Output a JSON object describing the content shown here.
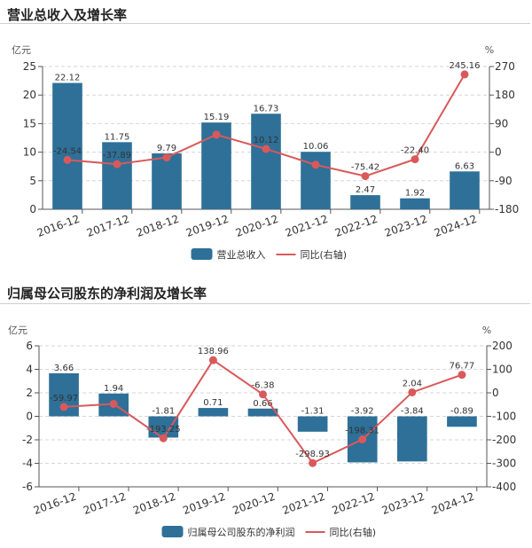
{
  "colors": {
    "bar": "#2e7098",
    "line": "#d9595b",
    "axis": "#555555",
    "grid": "#d6d6d6"
  },
  "chart_data": [
    {
      "type": "bar",
      "title": "营业总收入及增长率",
      "categories": [
        "2016-12",
        "2017-12",
        "2018-12",
        "2019-12",
        "2020-12",
        "2021-12",
        "2022-12",
        "2023-12",
        "2024-12"
      ],
      "left_axis": {
        "unit": "亿元",
        "ylim": [
          0,
          25
        ],
        "ticks": [
          "0",
          "5",
          "10",
          "15",
          "20",
          "25"
        ],
        "tick_values": [
          0,
          5,
          10,
          15,
          20,
          25
        ]
      },
      "right_axis": {
        "unit": "%",
        "ylim": [
          -180,
          270
        ],
        "ticks": [
          "-180",
          "-90",
          "0",
          "90",
          "180",
          "270"
        ],
        "tick_values": [
          -180,
          -90,
          0,
          90,
          180,
          270
        ]
      },
      "series": [
        {
          "name": "营业总收入",
          "type": "bar",
          "axis": "left",
          "values": [
            22.12,
            11.75,
            9.79,
            15.19,
            16.73,
            10.06,
            2.47,
            1.92,
            6.63
          ],
          "labels": [
            "22.12",
            "11.75",
            "9.79",
            "15.19",
            "16.73",
            "10.06",
            "2.47",
            "1.92",
            "6.63"
          ]
        },
        {
          "name": "同比(右轴)",
          "type": "line",
          "axis": "right",
          "values": [
            -24.54,
            -37.89,
            -16.68,
            55.16,
            10.12,
            -39.87,
            -75.42,
            -22.4,
            245.16
          ],
          "labels": [
            "-24.54",
            "-37.89",
            "",
            "",
            "10.12",
            "",
            "-75.42",
            "-22.40",
            "245.16"
          ]
        }
      ],
      "grid": true,
      "legend": "bottom-center"
    },
    {
      "type": "bar",
      "title": "归属母公司股东的净利润及增长率",
      "categories": [
        "2016-12",
        "2017-12",
        "2018-12",
        "2019-12",
        "2020-12",
        "2021-12",
        "2022-12",
        "2023-12",
        "2024-12"
      ],
      "left_axis": {
        "unit": "亿元",
        "ylim": [
          -6,
          6
        ],
        "ticks": [
          "-6",
          "-4",
          "-2",
          "0",
          "2",
          "4",
          "6"
        ],
        "tick_values": [
          -6,
          -4,
          -2,
          0,
          2,
          4,
          6
        ]
      },
      "right_axis": {
        "unit": "%",
        "ylim": [
          -400,
          200
        ],
        "ticks": [
          "-400",
          "-300",
          "-200",
          "-100",
          "0",
          "100",
          "200"
        ],
        "tick_values": [
          -400,
          -300,
          -200,
          -100,
          0,
          100,
          200
        ]
      },
      "series": [
        {
          "name": "归属母公司股东的净利润",
          "type": "bar",
          "axis": "left",
          "values": [
            3.66,
            1.94,
            -1.81,
            0.71,
            0.66,
            -1.31,
            -3.92,
            -3.84,
            -0.89
          ],
          "labels": [
            "3.66",
            "1.94",
            "-1.81",
            "0.71",
            "0.66",
            "-1.31",
            "-3.92",
            "-3.84",
            "-0.89"
          ]
        },
        {
          "name": "同比(右轴)",
          "type": "line",
          "axis": "right",
          "values": [
            -59.97,
            -47.0,
            -193.25,
            138.96,
            -6.38,
            -298.93,
            -198.31,
            2.04,
            76.77
          ],
          "labels": [
            "-59.97",
            "",
            "-193.25",
            "138.96",
            "-6.38",
            "-298.93",
            "-198.31",
            "2.04",
            "76.77"
          ]
        }
      ],
      "grid": true,
      "legend": "bottom-center"
    }
  ]
}
